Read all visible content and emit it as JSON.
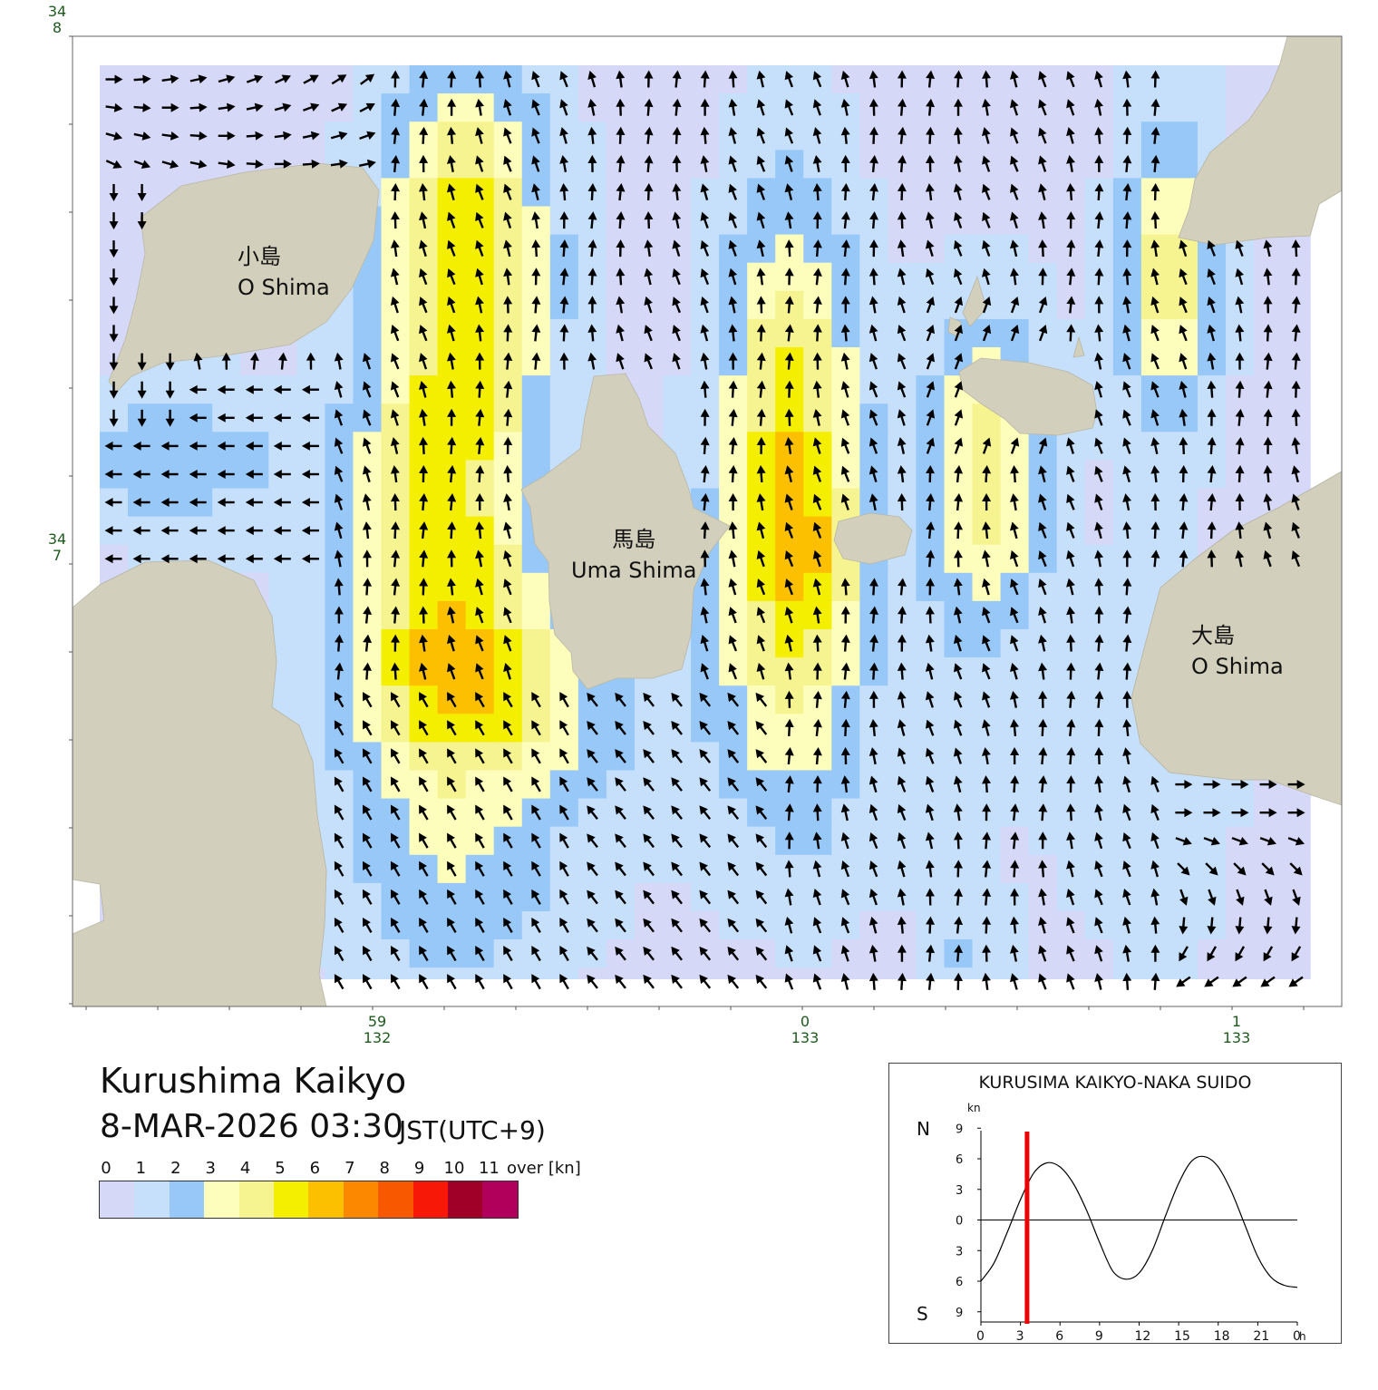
{
  "map": {
    "title": "Kurushima Kaikyo",
    "datetime": "8-MAR-2026 03:30",
    "timezone": "JST(UTC+9)",
    "lat_labels": [
      {
        "deg": "34",
        "min": "8"
      },
      {
        "deg": "34",
        "min": "7"
      }
    ],
    "lon_labels": [
      {
        "min": "59",
        "deg": "132"
      },
      {
        "min": "0",
        "deg": "133"
      },
      {
        "min": "1",
        "deg": "133"
      }
    ],
    "islands": [
      {
        "jp": "小島",
        "en": "O Shima"
      },
      {
        "jp": "馬島",
        "en": "Uma Shima"
      },
      {
        "jp": "大島",
        "en": "O Shima"
      }
    ],
    "colors": {
      "land": "#d2d0bc",
      "sea_0": "#d6d8f8",
      "sea_1": "#c6e0fc",
      "sea_2": "#98c8f8",
      "sea_3": "#fdfdbc",
      "sea_4": "#f6f490",
      "sea_5": "#f4ee00",
      "sea_6": "#fcc000",
      "arrow": "#000000"
    }
  },
  "legend": {
    "ticks": [
      "0",
      "1",
      "2",
      "3",
      "4",
      "5",
      "6",
      "7",
      "8",
      "9",
      "10",
      "11"
    ],
    "unit": "over [kn]",
    "colors": [
      "#d6d8f8",
      "#c6e0fc",
      "#98c8f8",
      "#fdfdbc",
      "#f6f490",
      "#f4ee00",
      "#fcc000",
      "#fc8800",
      "#f85800",
      "#f81808",
      "#a00028",
      "#b0005c"
    ]
  },
  "tide": {
    "title": "KURUSIMA KAIKYO-NAKA SUIDO",
    "unit": "kn",
    "north_label": "N",
    "south_label": "S",
    "y_ticks": [
      "9",
      "6",
      "3",
      "0",
      "3",
      "6",
      "9"
    ],
    "x_ticks": [
      "0",
      "3",
      "6",
      "9",
      "12",
      "15",
      "18",
      "21",
      "0"
    ],
    "x_unit": "h",
    "current_hour": 3.5,
    "chart_data": {
      "type": "line",
      "title": "KURUSIMA KAIKYO-NAKA SUIDO",
      "xlabel": "h",
      "ylabel": "kn",
      "xlim": [
        0,
        24
      ],
      "ylim": [
        -10,
        10
      ],
      "series": [
        {
          "x": [
            0,
            1,
            2,
            3,
            4,
            5,
            6,
            7,
            8,
            9,
            10,
            11,
            12,
            13,
            14,
            15,
            16,
            17,
            18,
            19,
            20,
            21,
            22,
            23,
            24
          ],
          "values": [
            -6.0,
            -4.2,
            -1.2,
            2.0,
            4.6,
            5.6,
            5.2,
            3.6,
            1.0,
            -2.2,
            -5.0,
            -5.8,
            -5.2,
            -3.0,
            0.4,
            3.6,
            5.8,
            6.2,
            5.2,
            2.8,
            -0.4,
            -3.6,
            -5.6,
            -6.4,
            -6.6
          ]
        }
      ]
    }
  }
}
